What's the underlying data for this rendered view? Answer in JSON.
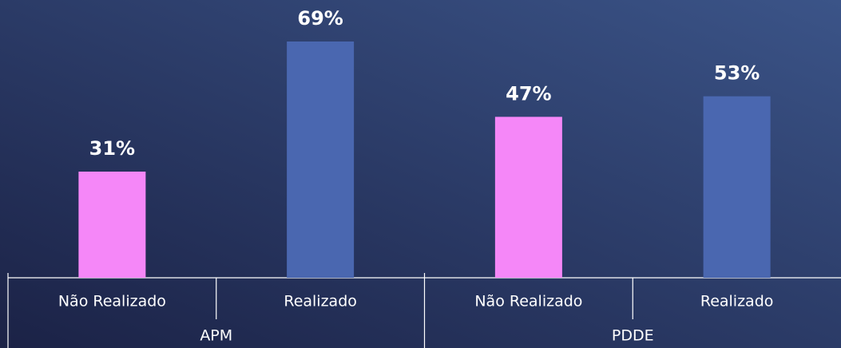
{
  "chart_data": {
    "type": "bar",
    "groups": [
      {
        "name": "APM",
        "categories": [
          "Não Realizado",
          "Realizado"
        ],
        "values": [
          31,
          69
        ],
        "value_labels": [
          "31%",
          "69%"
        ],
        "colors": [
          "#f587f8",
          "#4a67b0"
        ]
      },
      {
        "name": "PDDE",
        "categories": [
          "Não Realizado",
          "Realizado"
        ],
        "values": [
          47,
          53
        ],
        "value_labels": [
          "47%",
          "53%"
        ],
        "colors": [
          "#f587f8",
          "#4a67b0"
        ]
      }
    ]
  }
}
